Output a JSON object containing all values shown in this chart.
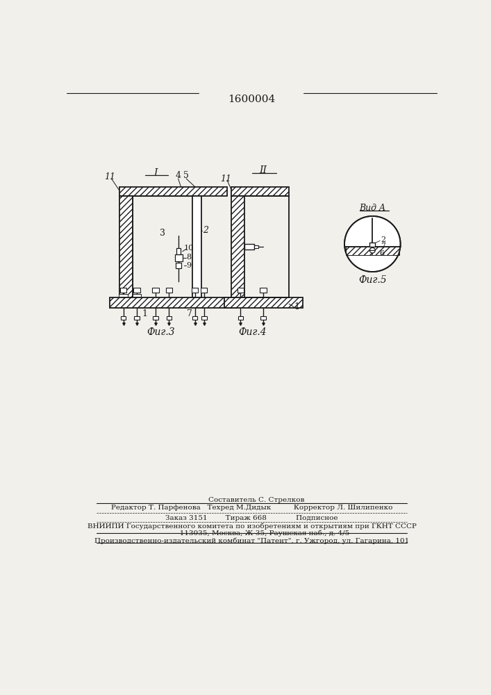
{
  "title": "1600004",
  "bg_color": "#f2f0eb",
  "fig_label1": "Фиг.3",
  "fig_label2": "Фиг.4",
  "fig_label3": "Фиг.5",
  "view_label": "Вид A",
  "roman1": "I",
  "roman2": "II",
  "footer_line1": "    Составитель С. Стрелков",
  "footer_line2": "Редактор Т. Парфенова   Техред М.Дидык          Корректор Л. Шилипенко",
  "footer_line3": "Заказ 3151        Тираж 668             Подписное",
  "footer_line4": "ВНИИПИ Государственного комитета по изобретениям и открытиям при ГКНТ СССР",
  "footer_line5": "           113035, Москва, Ж-35, Раушская наб., д. 4/5",
  "footer_line6": "Производственно-издательский комбинат \"Патент\", г. Ужгород, ул. Гагарина, 101",
  "lc": "#1a1a1a"
}
